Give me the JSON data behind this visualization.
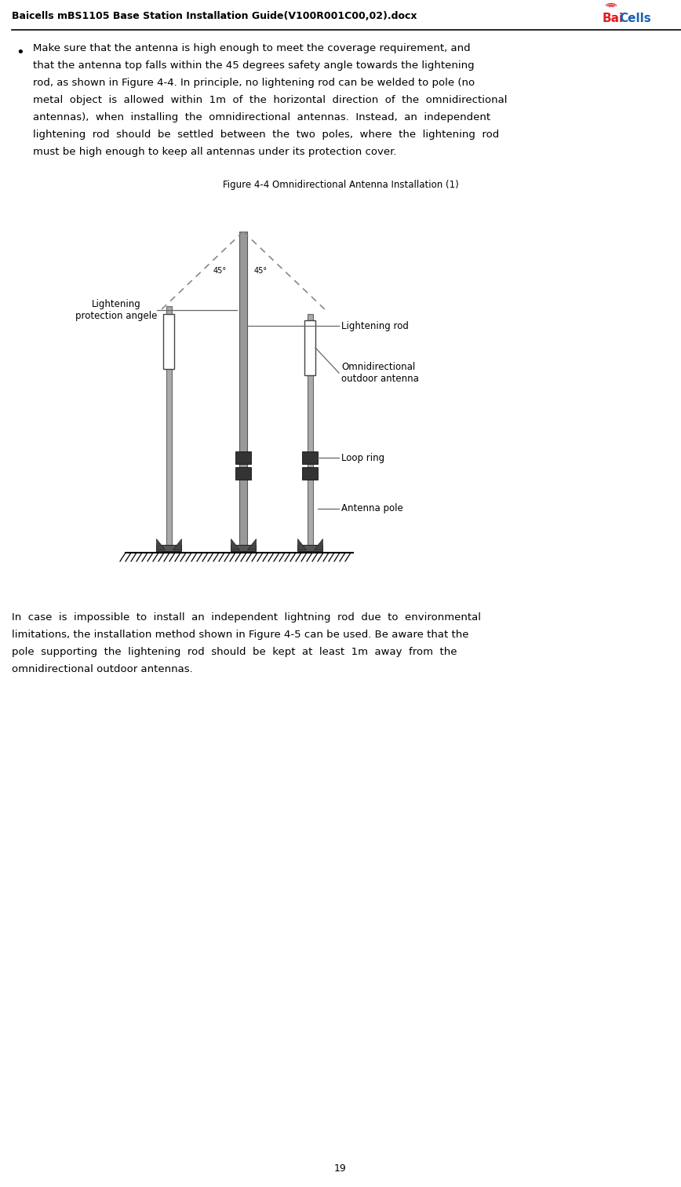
{
  "page_title": "Baicells mBS1105 Base Station Installation Guide(V100R001C00,02).docx",
  "figure_caption": "Figure 4-4 Omnidirectional Antenna Installation (1)",
  "bullet_lines": [
    "Make sure that the antenna is high enough to meet the coverage requirement, and",
    "that the antenna top falls within the 45 degrees safety angle towards the lightening",
    "rod, as shown in Figure 4-4. In principle, no lightening rod can be welded to pole (no",
    "metal  object  is  allowed  within  1m  of  the  horizontal  direction  of  the  omnidirectional",
    "antennas),  when  installing  the  omnidirectional  antennas.  Instead,  an  independent",
    "lightening  rod  should  be  settled  between  the  two  poles,  where  the  lightening  rod",
    "must be high enough to keep all antennas under its protection cover."
  ],
  "bottom_lines": [
    "In  case  is  impossible  to  install  an  independent  lightning  rod  due  to  environmental",
    "limitations, the installation method shown in Figure 4-5 can be used. Be aware that the",
    "pole  supporting  the  lightening  rod  should  be  kept  at  least  1m  away  from  the",
    "omnidirectional outdoor antennas."
  ],
  "diagram_labels": {
    "lightening_protection": "Lightening\nprotection angele",
    "lightening_rod": "Lightening rod",
    "omnidirectional": "Omnidirectional\noutdoor antenna",
    "loop_ring": "Loop ring",
    "antenna_pole": "Antenna pole",
    "angle_left": "45°",
    "angle_right": "45°"
  },
  "page_number": "19",
  "bg_color": "#ffffff",
  "header_line_color": "#000000",
  "text_color": "#000000",
  "pole_color": "#aaaaaa",
  "lrod_color": "#999999",
  "ring_color": "#333333",
  "line_color": "#666666",
  "dashed_color": "#888888",
  "ground_color": "#000000"
}
